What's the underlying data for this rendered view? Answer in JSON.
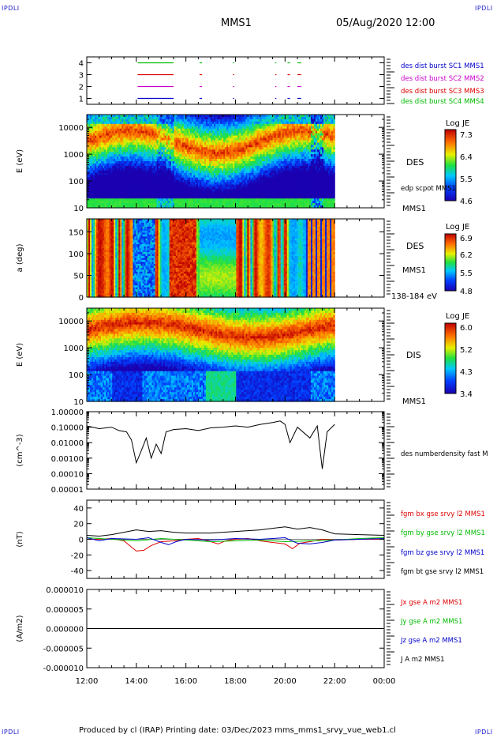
{
  "corners": {
    "tl": "IPDLI",
    "tr": "IPDLI",
    "bl": "IPDLI",
    "br": "IPDLI"
  },
  "header": {
    "mission": "MMS1",
    "datetime": "05/Aug/2020 12:00"
  },
  "footer": "Produced by cl (IRAP)   Printing date: 03/Dec/2023   mms_mms1_srvy_vue_web1.cl",
  "colors": {
    "red": "#dd0000",
    "green": "#00bb00",
    "blue": "#0000cc",
    "magenta": "#cc00cc",
    "black": "#000000"
  },
  "chart_data": [
    {
      "type": "line",
      "panel": "burst-availability",
      "ylim": [
        0.5,
        4.5
      ],
      "yticks": [
        "1",
        "2",
        "3",
        "4"
      ],
      "series": [
        {
          "name": "des dist burst SC1 MMS1",
          "color": "#0000cc",
          "level": 1,
          "intervals": [
            [
              14.05,
              15.5
            ],
            [
              16.55,
              16.65
            ],
            [
              17.9,
              17.95
            ],
            [
              19.6,
              19.65
            ],
            [
              20.1,
              20.2
            ],
            [
              20.5,
              20.65
            ]
          ]
        },
        {
          "name": "des dist burst SC2 MMS2",
          "color": "#cc00cc",
          "level": 2,
          "intervals": [
            [
              14.05,
              15.5
            ],
            [
              16.55,
              16.65
            ],
            [
              17.9,
              17.95
            ],
            [
              19.6,
              19.65
            ],
            [
              20.1,
              20.2
            ],
            [
              20.5,
              20.65
            ]
          ]
        },
        {
          "name": "des dist burst SC3 MMS3",
          "color": "#dd0000",
          "level": 3,
          "intervals": [
            [
              14.05,
              15.5
            ],
            [
              16.55,
              16.65
            ],
            [
              17.9,
              17.95
            ],
            [
              19.6,
              19.65
            ],
            [
              20.1,
              20.2
            ],
            [
              20.5,
              20.65
            ]
          ]
        },
        {
          "name": "des dist burst SC4 MMS4",
          "color": "#00bb00",
          "level": 4,
          "intervals": [
            [
              14.05,
              15.5
            ],
            [
              16.55,
              16.65
            ],
            [
              17.9,
              17.95
            ],
            [
              19.6,
              19.65
            ],
            [
              20.1,
              20.2
            ],
            [
              20.5,
              20.65
            ]
          ]
        }
      ]
    },
    {
      "type": "heatmap",
      "panel": "des-energy",
      "ylabel": "E (eV)",
      "yscale": "log",
      "ylim": [
        10,
        30000
      ],
      "yticks": [
        "10",
        "100",
        "1000",
        "10000"
      ],
      "instrument": "DES",
      "spacecraft": "MMS1",
      "overlay": "edp scpot MMS1",
      "colorbar": {
        "title": "Log JE",
        "ticks": [
          "7.3",
          "6.4",
          "5.5",
          "4.6"
        ],
        "range": [
          4.6,
          7.3
        ]
      }
    },
    {
      "type": "heatmap",
      "panel": "des-pitch",
      "ylabel": "a (deg)",
      "ylim": [
        0,
        180
      ],
      "yticks": [
        "0",
        "50",
        "100",
        "150"
      ],
      "instrument": "DES",
      "spacecraft": "MMS1",
      "energy_range": "138-184 eV",
      "colorbar": {
        "title": "Log JE",
        "ticks": [
          "6.9",
          "6.2",
          "5.5",
          "4.8"
        ],
        "range": [
          4.8,
          6.9
        ]
      }
    },
    {
      "type": "heatmap",
      "panel": "dis-energy",
      "ylabel": "E (eV)",
      "yscale": "log",
      "ylim": [
        10,
        30000
      ],
      "yticks": [
        "10",
        "100",
        "1000",
        "10000"
      ],
      "instrument": "DIS",
      "spacecraft": "MMS1",
      "colorbar": {
        "title": "Log JE",
        "ticks": [
          "6.0",
          "5.2",
          "4.3",
          "3.4"
        ],
        "range": [
          3.4,
          6.0
        ]
      }
    },
    {
      "type": "line",
      "panel": "density",
      "ylabel": "(cm^-3)",
      "yscale": "log",
      "ylim": [
        1e-05,
        1
      ],
      "yticks": [
        "1.00000",
        "0.10000",
        "0.01000",
        "0.00100",
        "0.00010",
        "0.00001"
      ],
      "series": [
        {
          "name": "des numberdensity fast M",
          "color": "#000000",
          "x": [
            12.0,
            12.5,
            13.0,
            13.3,
            13.6,
            13.8,
            14.0,
            14.2,
            14.4,
            14.6,
            14.8,
            15.0,
            15.2,
            15.5,
            16.0,
            16.5,
            17.0,
            17.5,
            18.0,
            18.5,
            19.0,
            19.5,
            19.8,
            20.0,
            20.2,
            20.5,
            21.0,
            21.3,
            21.5,
            21.7,
            22.0
          ],
          "y": [
            0.12,
            0.08,
            0.1,
            0.06,
            0.05,
            0.015,
            0.0005,
            0.003,
            0.02,
            0.001,
            0.008,
            0.002,
            0.05,
            0.07,
            0.08,
            0.06,
            0.09,
            0.1,
            0.12,
            0.1,
            0.15,
            0.2,
            0.25,
            0.15,
            0.01,
            0.1,
            0.02,
            0.12,
            0.0002,
            0.05,
            0.15
          ]
        }
      ]
    },
    {
      "type": "line",
      "panel": "fgm",
      "ylabel": "(nT)",
      "ylim": [
        -50,
        50
      ],
      "yticks": [
        "40",
        "20",
        "0",
        "-20",
        "-40"
      ],
      "series": [
        {
          "name": "fgm bx gse srvy l2 MMS1",
          "color": "#dd0000",
          "x": [
            12.0,
            12.5,
            13.0,
            13.5,
            13.8,
            14.0,
            14.3,
            14.6,
            15.0,
            15.5,
            16.0,
            16.5,
            17.0,
            17.3,
            17.6,
            18.0,
            18.5,
            19.0,
            19.5,
            20.0,
            20.3,
            20.6,
            21.0,
            21.5,
            22.0,
            23.0,
            24.0
          ],
          "y": [
            0,
            0,
            1,
            -2,
            -10,
            -15,
            -14,
            -8,
            -3,
            -2,
            0,
            1,
            -3,
            -6,
            -2,
            0,
            1,
            -2,
            -4,
            -6,
            -12,
            -5,
            -3,
            0,
            -1,
            0,
            0
          ]
        },
        {
          "name": "fgm by gse srvy l2 MMS1",
          "color": "#00bb00",
          "x": [
            12.0,
            13.0,
            14.0,
            15.0,
            16.0,
            17.0,
            18.0,
            19.0,
            20.0,
            21.0,
            22.0,
            23.0,
            24.0
          ],
          "y": [
            2,
            0,
            -2,
            1,
            -1,
            -3,
            -2,
            -1,
            -3,
            -2,
            -1,
            1,
            2
          ]
        },
        {
          "name": "fgm bz gse srvy l2 MMS1",
          "color": "#0000cc",
          "x": [
            12.0,
            12.5,
            13.0,
            14.0,
            14.5,
            15.0,
            15.3,
            15.6,
            16.0,
            17.0,
            18.0,
            19.0,
            20.0,
            20.5,
            21.0,
            21.5,
            22.0,
            23.0,
            24.0
          ],
          "y": [
            2,
            -2,
            1,
            0,
            2,
            -4,
            -7,
            -3,
            0,
            -1,
            1,
            0,
            2,
            -5,
            -6,
            -4,
            -1,
            0,
            1
          ]
        },
        {
          "name": "fgm bt gse srvy l2 MMS1",
          "color": "#000000",
          "x": [
            12.0,
            12.5,
            13.0,
            13.5,
            14.0,
            14.5,
            15.0,
            15.5,
            16.0,
            17.0,
            18.0,
            19.0,
            19.5,
            20.0,
            20.5,
            21.0,
            21.5,
            22.0,
            23.0,
            24.0
          ],
          "y": [
            5,
            4,
            6,
            9,
            12,
            10,
            11,
            9,
            8,
            8,
            10,
            12,
            14,
            16,
            13,
            15,
            12,
            7,
            6,
            5
          ]
        }
      ]
    },
    {
      "type": "line",
      "panel": "current",
      "ylabel": "(A/m2)",
      "ylim": [
        -1e-05,
        1e-05
      ],
      "yticks": [
        "0.000010",
        "0.000005",
        "0.000000",
        "-0.000005",
        "-0.000010"
      ],
      "series": [
        {
          "name": "Jx gse A m2 MMS1",
          "color": "#dd0000"
        },
        {
          "name": "Jy gse A m2 MMS1",
          "color": "#00bb00"
        },
        {
          "name": "Jz gse A m2 MMS1",
          "color": "#0000cc"
        },
        {
          "name": "J A m2 MMS1",
          "color": "#000000",
          "x": [
            12,
            24
          ],
          "y": [
            0,
            0
          ]
        }
      ]
    }
  ],
  "time_axis": {
    "ticks": [
      "12:00",
      "14:00",
      "16:00",
      "18:00",
      "20:00",
      "22:00",
      "00:00"
    ],
    "range": [
      12,
      24
    ],
    "data_end": 22
  }
}
